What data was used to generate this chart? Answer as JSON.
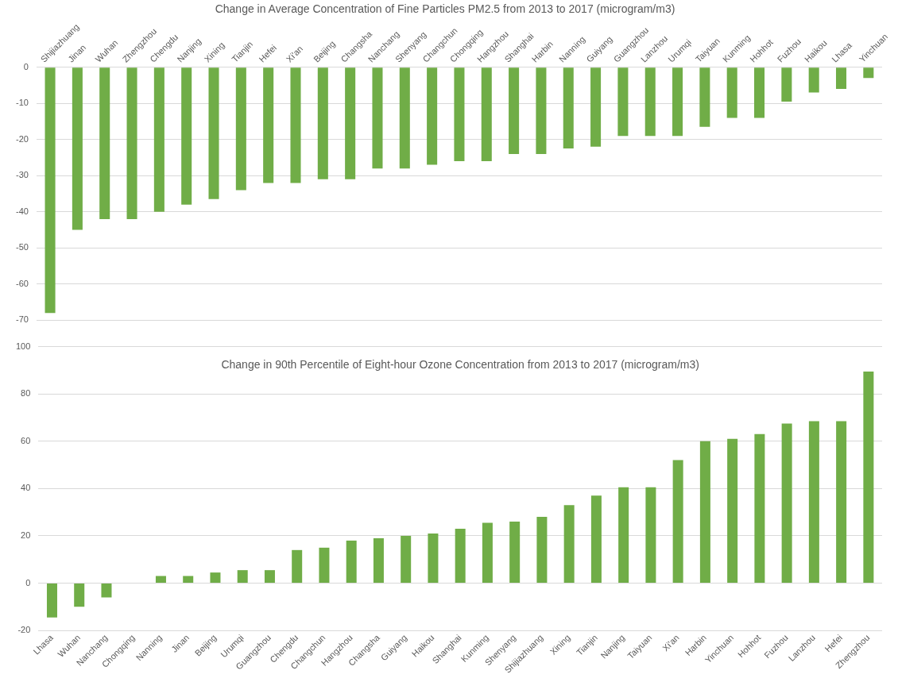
{
  "chart_data": [
    {
      "type": "bar",
      "title": "Change in Average Concentration of Fine Particles PM2.5 from 2013 to 2017 (microgram/m3)",
      "categories": [
        "Shijiazhuang",
        "Jinan",
        "Wuhan",
        "Zhengzhou",
        "Chengdu",
        "Nanjing",
        "Xining",
        "Tianjin",
        "Hefei",
        "Xi'an",
        "Beijing",
        "Changsha",
        "Nanchang",
        "Shenyang",
        "Changchun",
        "Chongqing",
        "Hangzhou",
        "Shanghai",
        "Harbin",
        "Nanning",
        "Guiyang",
        "Guangzhou",
        "Lanzhou",
        "Urumqi",
        "Taiyuan",
        "Kunming",
        "Hohhot",
        "Fuzhou",
        "Haikou",
        "Lhasa",
        "Yinchuan"
      ],
      "values": [
        -68,
        -45,
        -42,
        -42,
        -40,
        -38,
        -36.5,
        -34,
        -32,
        -32,
        -31,
        -31,
        -28,
        -28,
        -27,
        -26,
        -26,
        -24,
        -24,
        -22.5,
        -22,
        -19,
        -19,
        -19,
        -16.5,
        -14,
        -14,
        -9.5,
        -7,
        -6,
        -3
      ],
      "color": "#70ad47",
      "ylim": [
        -70,
        0
      ],
      "yticks": [
        -70,
        -60,
        -50,
        -40,
        -30,
        -20,
        -10,
        0
      ],
      "grid": "y"
    },
    {
      "type": "bar",
      "title": "Change in 90th Percentile of Eight-hour Ozone Concentration from 2013 to 2017 (microgram/m3)",
      "categories": [
        "Lhasa",
        "Wuhan",
        "Nanchang",
        "Chongqing",
        "Nanning",
        "Jinan",
        "Beijing",
        "Urumqi",
        "Guangzhou",
        "Chengdu",
        "Changchun",
        "Hangzhou",
        "Changsha",
        "Guiyang",
        "Haikou",
        "Shanghai",
        "Kunming",
        "Shenyang",
        "Shijiazhuang",
        "Xining",
        "Tianjin",
        "Nanjing",
        "Taiyuan",
        "Xi'an",
        "Harbin",
        "Yinchuan",
        "Hohhot",
        "Fuzhou",
        "Lanzhou",
        "Hefei",
        "Zhengzhou"
      ],
      "values": [
        -14.5,
        -10,
        -6,
        0,
        3,
        3,
        4.5,
        5.5,
        5.5,
        14,
        15,
        18,
        19,
        20,
        21,
        23,
        25.5,
        26,
        28,
        33,
        37,
        40.5,
        40.5,
        52,
        60,
        61,
        63,
        67.5,
        68.5,
        68.5,
        89.5
      ],
      "color": "#70ad47",
      "ylim": [
        -20,
        100
      ],
      "yticks": [
        -20,
        0,
        20,
        40,
        60,
        80,
        100
      ],
      "grid": "y"
    }
  ]
}
